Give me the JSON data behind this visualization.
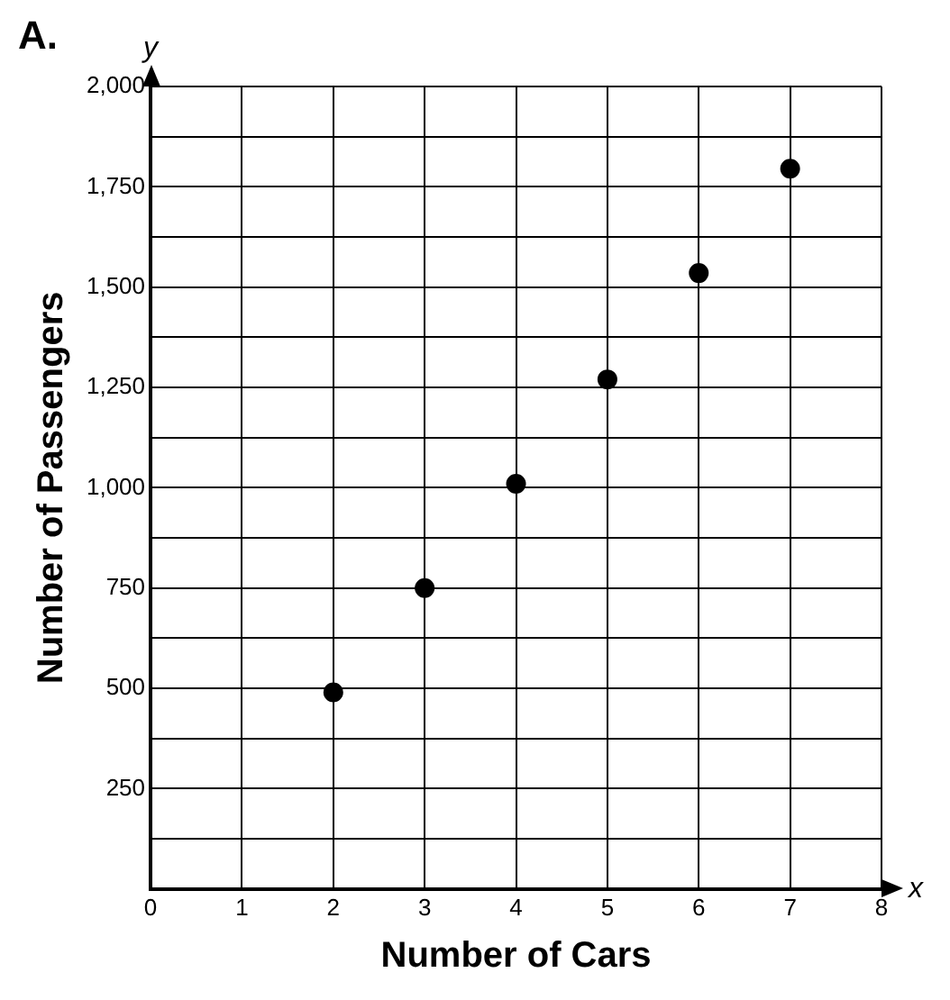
{
  "chart_data": {
    "type": "scatter",
    "xlabel": "Number of Cars",
    "ylabel": "Number of Passengers",
    "annotations": [
      "A.",
      "y",
      "x"
    ],
    "x": [
      2,
      3,
      4,
      5,
      6,
      7
    ],
    "values": [
      490,
      750,
      1010,
      1270,
      1535,
      1795
    ],
    "color": "#000000",
    "marker": "circle",
    "grid": true,
    "xlim": [
      0,
      8
    ],
    "xticks": [
      0,
      1,
      2,
      3,
      4,
      5,
      6,
      7,
      8
    ],
    "ylim": [
      0,
      2000
    ],
    "yticks": [
      {
        "value": 0,
        "label": null
      },
      {
        "value": 125,
        "label": null
      },
      250,
      {
        "value": 375,
        "label": null
      },
      500,
      {
        "value": 625,
        "label": null
      },
      750,
      {
        "value": 875,
        "label": null
      },
      {
        "value": 1000,
        "label": "1,000"
      },
      {
        "value": 1125,
        "label": null
      },
      {
        "value": 1250,
        "label": "1,250"
      },
      {
        "value": 1375,
        "label": null
      },
      {
        "value": 1500,
        "label": "1,500"
      },
      {
        "value": 1625,
        "label": null
      },
      {
        "value": 1750,
        "label": "1,750"
      },
      {
        "value": 1875,
        "label": null
      },
      {
        "value": 2000,
        "label": "2,000"
      }
    ]
  }
}
